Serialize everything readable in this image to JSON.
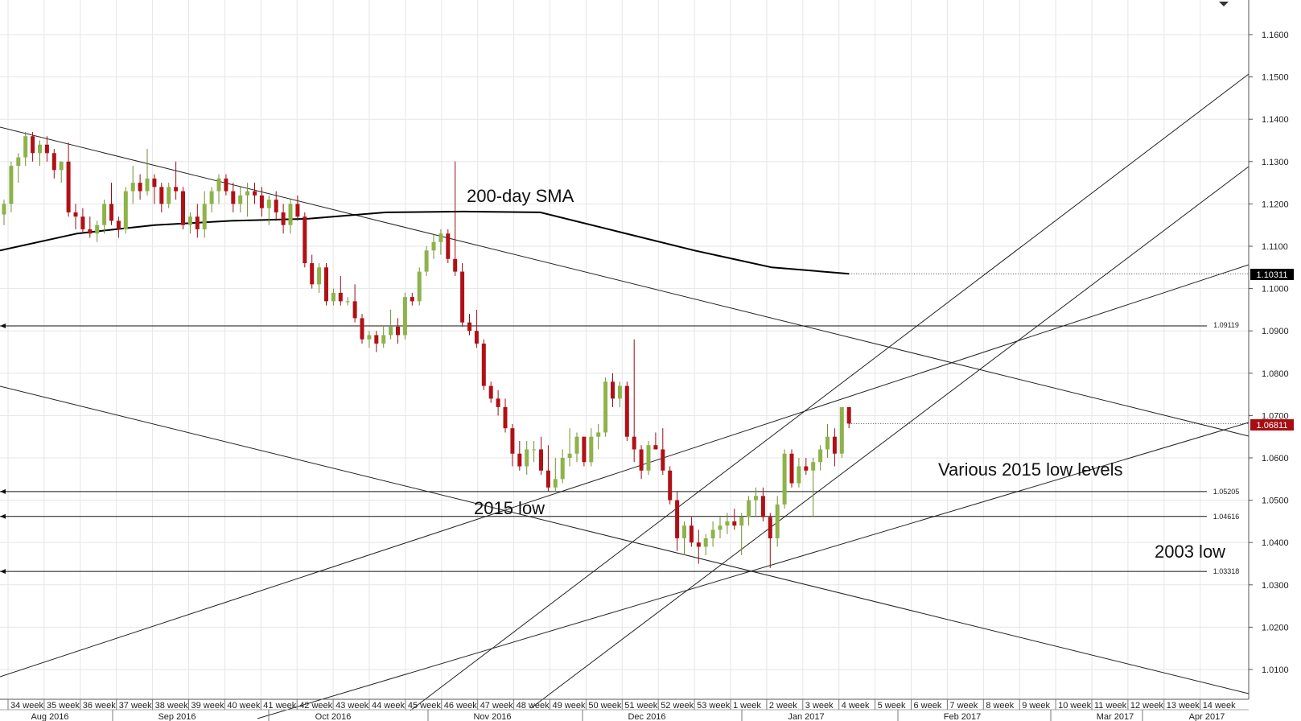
{
  "chart_data": {
    "type": "candlestick",
    "title": "",
    "xlabel": "",
    "ylabel": "",
    "ylim": [
      1.0035,
      1.1695
    ],
    "grid": true,
    "y_ticks": [
      "1.1600",
      "1.1500",
      "1.1400",
      "1.1300",
      "1.1200",
      "1.1100",
      "1.1000",
      "1.0900",
      "1.0800",
      "1.0700",
      "1.0600",
      "1.0500",
      "1.0400",
      "1.0300",
      "1.0200",
      "1.0100"
    ],
    "week_labels": [
      "34 week",
      "35 week",
      "36 week",
      "37 week",
      "38 week",
      "39 week",
      "40 week",
      "41 week",
      "42 week",
      "43 week",
      "44 week",
      "45 week",
      "46 week",
      "47 week",
      "48 week",
      "49 week",
      "50 week",
      "51 week",
      "52 week",
      "53 week",
      "1 week",
      "2 week",
      "3 week",
      "4 week",
      "5 week",
      "6 week",
      "7 week",
      "8 week",
      "9 week",
      "10 week",
      "11 week",
      "12 week",
      "13 week",
      "14 week"
    ],
    "month_labels": [
      "Aug 2016",
      "Sep 2016",
      "Oct 2016",
      "Nov 2016",
      "Dec 2016",
      "Jan 2017",
      "Feb 2017",
      "Mar 2017",
      "Apr 2017"
    ],
    "candles": [
      [
        1.1175,
        1.121,
        1.115,
        1.12
      ],
      [
        1.12,
        1.13,
        1.118,
        1.129
      ],
      [
        1.129,
        1.132,
        1.125,
        1.131
      ],
      [
        1.131,
        1.137,
        1.129,
        1.136
      ],
      [
        1.136,
        1.137,
        1.13,
        1.132
      ],
      [
        1.132,
        1.135,
        1.129,
        1.134
      ],
      [
        1.134,
        1.136,
        1.13,
        1.132
      ],
      [
        1.132,
        1.133,
        1.126,
        1.128
      ],
      [
        1.128,
        1.13,
        1.125,
        1.13
      ],
      [
        1.13,
        1.1345,
        1.117,
        1.118
      ],
      [
        1.118,
        1.12,
        1.114,
        1.117
      ],
      [
        1.117,
        1.119,
        1.113,
        1.114
      ],
      [
        1.114,
        1.117,
        1.112,
        1.113
      ],
      [
        1.113,
        1.116,
        1.111,
        1.115
      ],
      [
        1.115,
        1.121,
        1.113,
        1.12
      ],
      [
        1.12,
        1.125,
        1.115,
        1.116
      ],
      [
        1.116,
        1.117,
        1.112,
        1.114
      ],
      [
        1.114,
        1.124,
        1.113,
        1.123
      ],
      [
        1.123,
        1.129,
        1.12,
        1.125
      ],
      [
        1.125,
        1.127,
        1.121,
        1.123
      ],
      [
        1.123,
        1.133,
        1.122,
        1.126
      ],
      [
        1.126,
        1.127,
        1.12,
        1.124
      ],
      [
        1.124,
        1.125,
        1.118,
        1.12
      ],
      [
        1.12,
        1.125,
        1.119,
        1.124
      ],
      [
        1.124,
        1.13,
        1.121,
        1.123
      ],
      [
        1.123,
        1.124,
        1.114,
        1.115
      ],
      [
        1.115,
        1.118,
        1.113,
        1.117
      ],
      [
        1.117,
        1.12,
        1.112,
        1.114
      ],
      [
        1.114,
        1.123,
        1.112,
        1.12
      ],
      [
        1.12,
        1.124,
        1.118,
        1.123
      ],
      [
        1.123,
        1.127,
        1.12,
        1.126
      ],
      [
        1.126,
        1.127,
        1.122,
        1.123
      ],
      [
        1.123,
        1.125,
        1.118,
        1.12
      ],
      [
        1.12,
        1.124,
        1.118,
        1.122
      ],
      [
        1.122,
        1.125,
        1.117,
        1.123
      ],
      [
        1.123,
        1.125,
        1.12,
        1.122
      ],
      [
        1.122,
        1.124,
        1.117,
        1.119
      ],
      [
        1.119,
        1.122,
        1.115,
        1.121
      ],
      [
        1.121,
        1.123,
        1.116,
        1.118
      ],
      [
        1.118,
        1.12,
        1.113,
        1.115
      ],
      [
        1.115,
        1.121,
        1.113,
        1.12
      ],
      [
        1.12,
        1.122,
        1.116,
        1.117
      ],
      [
        1.117,
        1.118,
        1.105,
        1.106
      ],
      [
        1.106,
        1.108,
        1.1,
        1.101
      ],
      [
        1.101,
        1.106,
        1.099,
        1.105
      ],
      [
        1.105,
        1.106,
        1.096,
        1.097
      ],
      [
        1.097,
        1.1,
        1.096,
        1.099
      ],
      [
        1.099,
        1.103,
        1.096,
        1.097
      ],
      [
        1.097,
        1.098,
        1.096,
        1.097
      ],
      [
        1.097,
        1.101,
        1.092,
        1.093
      ],
      [
        1.093,
        1.094,
        1.087,
        1.088
      ],
      [
        1.088,
        1.09,
        1.086,
        1.089
      ],
      [
        1.089,
        1.09,
        1.085,
        1.087
      ],
      [
        1.087,
        1.091,
        1.086,
        1.089
      ],
      [
        1.089,
        1.095,
        1.088,
        1.091
      ],
      [
        1.091,
        1.093,
        1.087,
        1.089
      ],
      [
        1.089,
        1.099,
        1.088,
        1.098
      ],
      [
        1.098,
        1.099,
        1.096,
        1.097
      ],
      [
        1.097,
        1.105,
        1.096,
        1.104
      ],
      [
        1.104,
        1.11,
        1.103,
        1.109
      ],
      [
        1.109,
        1.113,
        1.107,
        1.111
      ],
      [
        1.111,
        1.114,
        1.108,
        1.113
      ],
      [
        1.113,
        1.114,
        1.106,
        1.107
      ],
      [
        1.107,
        1.13,
        1.103,
        1.104
      ],
      [
        1.104,
        1.106,
        1.091,
        1.092
      ],
      [
        1.092,
        1.094,
        1.089,
        1.09
      ],
      [
        1.09,
        1.095,
        1.086,
        1.087
      ],
      [
        1.087,
        1.088,
        1.076,
        1.077
      ],
      [
        1.077,
        1.078,
        1.073,
        1.074
      ],
      [
        1.074,
        1.076,
        1.07,
        1.072
      ],
      [
        1.072,
        1.074,
        1.066,
        1.067
      ],
      [
        1.067,
        1.068,
        1.058,
        1.061
      ],
      [
        1.061,
        1.064,
        1.057,
        1.058
      ],
      [
        1.058,
        1.064,
        1.056,
        1.062
      ],
      [
        1.062,
        1.064,
        1.059,
        1.062
      ],
      [
        1.062,
        1.065,
        1.056,
        1.057
      ],
      [
        1.057,
        1.063,
        1.052,
        1.053
      ],
      [
        1.053,
        1.06,
        1.052,
        1.055
      ],
      [
        1.055,
        1.062,
        1.054,
        1.06
      ],
      [
        1.06,
        1.067,
        1.058,
        1.061
      ],
      [
        1.061,
        1.066,
        1.059,
        1.065
      ],
      [
        1.065,
        1.065,
        1.058,
        1.059
      ],
      [
        1.059,
        1.067,
        1.058,
        1.065
      ],
      [
        1.065,
        1.068,
        1.062,
        1.066
      ],
      [
        1.066,
        1.079,
        1.065,
        1.078
      ],
      [
        1.078,
        1.08,
        1.072,
        1.074
      ],
      [
        1.074,
        1.078,
        1.072,
        1.077
      ],
      [
        1.077,
        1.078,
        1.064,
        1.065
      ],
      [
        1.065,
        1.088,
        1.059,
        1.062
      ],
      [
        1.062,
        1.063,
        1.055,
        1.057
      ],
      [
        1.057,
        1.064,
        1.056,
        1.063
      ],
      [
        1.063,
        1.066,
        1.062,
        1.062
      ],
      [
        1.062,
        1.067,
        1.056,
        1.057
      ],
      [
        1.057,
        1.058,
        1.049,
        1.05
      ],
      [
        1.05,
        1.052,
        1.038,
        1.041
      ],
      [
        1.041,
        1.045,
        1.037,
        1.044
      ],
      [
        1.044,
        1.046,
        1.039,
        1.04
      ],
      [
        1.04,
        1.043,
        1.035,
        1.039
      ],
      [
        1.039,
        1.042,
        1.037,
        1.041
      ],
      [
        1.041,
        1.045,
        1.039,
        1.043
      ],
      [
        1.043,
        1.046,
        1.041,
        1.044
      ],
      [
        1.044,
        1.047,
        1.042,
        1.045
      ],
      [
        1.045,
        1.048,
        1.043,
        1.044
      ],
      [
        1.044,
        1.047,
        1.037,
        1.046
      ],
      [
        1.046,
        1.051,
        1.044,
        1.05
      ],
      [
        1.05,
        1.053,
        1.046,
        1.051
      ],
      [
        1.051,
        1.053,
        1.045,
        1.046
      ],
      [
        1.046,
        1.047,
        1.034,
        1.041
      ],
      [
        1.041,
        1.051,
        1.039,
        1.049
      ],
      [
        1.049,
        1.062,
        1.048,
        1.061
      ],
      [
        1.061,
        1.062,
        1.053,
        1.054
      ],
      [
        1.054,
        1.06,
        1.053,
        1.058
      ],
      [
        1.058,
        1.06,
        1.056,
        1.057
      ],
      [
        1.057,
        1.06,
        1.046,
        1.059
      ],
      [
        1.059,
        1.063,
        1.057,
        1.062
      ],
      [
        1.062,
        1.068,
        1.06,
        1.065
      ],
      [
        1.065,
        1.067,
        1.058,
        1.061
      ],
      [
        1.061,
        1.072,
        1.06,
        1.072
      ],
      [
        1.072,
        1.072,
        1.067,
        1.0681
      ]
    ],
    "sma": {
      "name": "200-day SMA",
      "values": [
        1.109,
        1.113,
        1.115,
        1.116,
        1.1165,
        1.118,
        1.1182,
        1.118,
        1.1135,
        1.109,
        1.105,
        1.1035
      ],
      "last_value_label": "1.10311"
    },
    "last_price_label": "1.06811",
    "levels": [
      {
        "value": 1.09119,
        "label": "1.09119"
      },
      {
        "value": 1.05205,
        "label": "1.05205"
      },
      {
        "value": 1.04616,
        "label": "1.04616"
      },
      {
        "value": 1.03318,
        "label": "1.03318"
      }
    ],
    "annotations": [
      "200-day SMA",
      "Various 2015 low levels",
      "2015 low",
      "2003 low"
    ],
    "colors": {
      "up": "#8DB34A",
      "down": "#B01116",
      "wick_up": "#6f8f32",
      "wick_down": "#9a0e12",
      "label_bg": "#A80D12",
      "sma": "#000000",
      "grid": "#e6e6e6"
    }
  }
}
